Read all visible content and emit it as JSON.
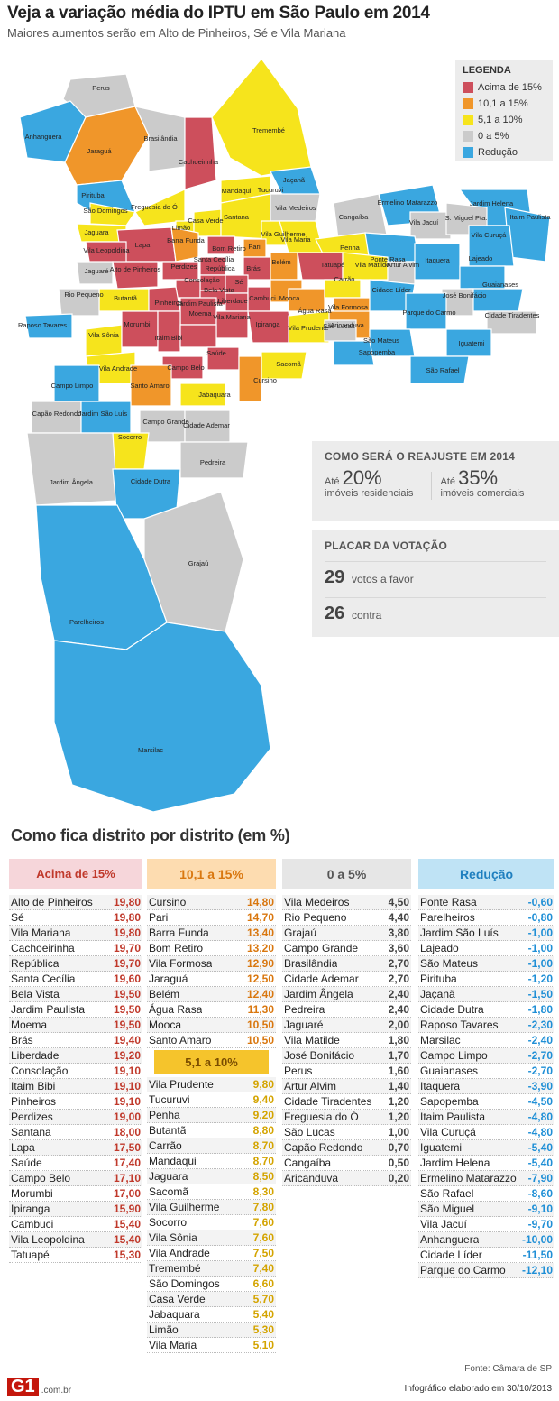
{
  "header": {
    "title": "Veja a variação média do IPTU em São Paulo em 2014",
    "subtitle": "Maiores aumentos serão em Alto de Pinheiros, Sé e Vila Mariana"
  },
  "colors": {
    "acima_15": "#cd4f5c",
    "de_10_15": "#f0962a",
    "de_5_10": "#f6e41c",
    "de_0_5": "#cbcbcb",
    "reducao": "#3aa7e0",
    "border": "#ffffff"
  },
  "legend": {
    "title": "LEGENDA",
    "items": [
      {
        "label": "Acima de 15%",
        "color": "#cd4f5c"
      },
      {
        "label": "10,1 a 15%",
        "color": "#f0962a"
      },
      {
        "label": "5,1 a 10%",
        "color": "#f6e41c"
      },
      {
        "label": "0 a 5%",
        "color": "#cbcbcb"
      },
      {
        "label": "Redução",
        "color": "#3aa7e0"
      }
    ]
  },
  "reajuste": {
    "title": "COMO SERÁ O REAJUSTE EM 2014",
    "residencial": {
      "prefix": "Até",
      "value": "20%",
      "label": "imóveis residenciais"
    },
    "comercial": {
      "prefix": "Até",
      "value": "35%",
      "label": "imóveis comerciais"
    }
  },
  "placar": {
    "title": "PLACAR DA VOTAÇÃO",
    "favor": {
      "value": "29",
      "label": "votos a favor"
    },
    "contra": {
      "value": "26",
      "label": "contra"
    }
  },
  "map_labels": [
    "Perus",
    "Anhanguera",
    "Jaraguá",
    "Brasilândia",
    "Cachoeirinha",
    "Tremembé",
    "Jaçanã",
    "Pirituba",
    "São Domingos",
    "Jaguara",
    "Freguesia do Ó",
    "Limão",
    "Casa Verde",
    "Mandaqui",
    "Tucuruvi",
    "Santana",
    "Vila Medeiros",
    "Vila Guilherme",
    "Vila Maria",
    "Ermelino Matarazzo",
    "Jardim Helena",
    "Itaim Paulista",
    "Cangaíba",
    "Vila Jacuí",
    "S. Miguel Pta.",
    "Vila Curuçá",
    "Penha",
    "Ponte Rasa",
    "Lapa",
    "Vila Leopoldina",
    "Barra Funda",
    "Bom Retiro",
    "Pari",
    "Jaguaré",
    "Alto de Pinheiros",
    "Perdizes",
    "Santa Cecília",
    "República",
    "Brás",
    "Belém",
    "Tatuapé",
    "Vila Matilde",
    "Artur Alvim",
    "Itaquera",
    "Lajeado",
    "Guaianases",
    "Butantã",
    "Consolação",
    "Sé",
    "Bela Vista",
    "Liberdade",
    "Cambuci",
    "Mooca",
    "Água Rasa",
    "Carrão",
    "Vila Formosa",
    "Aricanduva",
    "Cidade Líder",
    "José Bonifácio",
    "Parque do Carmo",
    "Cidade Tiradentes",
    "Rio Pequeno",
    "Raposo Tavares",
    "Pinheiros",
    "Jardim Paulista",
    "Vila Mariana",
    "Ipiranga",
    "Vila Prudente",
    "São Lucas",
    "São Mateus",
    "Sapopemba",
    "Iguatemi",
    "São Rafael",
    "Vila Sônia",
    "Morumbi",
    "Itaim Bibi",
    "Moema",
    "Saúde",
    "Vila Andrade",
    "Campo Belo",
    "Santo Amaro",
    "Sacomã",
    "Cursino",
    "Jabaquara",
    "Campo Limpo",
    "Capão Redondo",
    "Jardim São Luís",
    "Campo Grande",
    "Cidade Ademar",
    "Socorro",
    "Pedreira",
    "Jardim Ângela",
    "Cidade Dutra",
    "Grajaú",
    "Parelheiros",
    "Marsilac"
  ],
  "table": {
    "title": "Como fica distrito por distrito (em %)",
    "mid_header": "5,1 a 10%",
    "columns": [
      {
        "header": "Acima de 15%",
        "header_bg": "#f6d6da",
        "header_color": "#c0392b",
        "value_color": "#c0392b",
        "rows": [
          {
            "name": "Alto de Pinheiros",
            "value": "19,80"
          },
          {
            "name": "Sé",
            "value": "19,80"
          },
          {
            "name": "Vila Mariana",
            "value": "19,80"
          },
          {
            "name": "Cachoeirinha",
            "value": "19,70"
          },
          {
            "name": "República",
            "value": "19,70"
          },
          {
            "name": "Santa Cecília",
            "value": "19,60"
          },
          {
            "name": "Bela Vista",
            "value": "19,50"
          },
          {
            "name": "Jardim Paulista",
            "value": "19,50"
          },
          {
            "name": "Moema",
            "value": "19,50"
          },
          {
            "name": "Brás",
            "value": "19,40"
          },
          {
            "name": "Liberdade",
            "value": "19,20"
          },
          {
            "name": "Consolação",
            "value": "19,10"
          },
          {
            "name": "Itaim Bibi",
            "value": "19,10"
          },
          {
            "name": "Pinheiros",
            "value": "19,10"
          },
          {
            "name": "Perdizes",
            "value": "19,00"
          },
          {
            "name": "Santana",
            "value": "18,00"
          },
          {
            "name": "Lapa",
            "value": "17,50"
          },
          {
            "name": "Saúde",
            "value": "17,40"
          },
          {
            "name": "Campo Belo",
            "value": "17,10"
          },
          {
            "name": "Morumbi",
            "value": "17,00"
          },
          {
            "name": "Ipiranga",
            "value": "15,90"
          },
          {
            "name": "Cambuci",
            "value": "15,40"
          },
          {
            "name": "Vila Leopoldina",
            "value": "15,40"
          },
          {
            "name": "Tatuapé",
            "value": "15,30"
          }
        ]
      },
      {
        "header": "10,1 a 15%",
        "header_bg": "#fddcb0",
        "header_color": "#d9770f",
        "value_color": "#d9770f",
        "rows": [
          {
            "name": "Cursino",
            "value": "14,80"
          },
          {
            "name": "Pari",
            "value": "14,70"
          },
          {
            "name": "Barra Funda",
            "value": "13,40"
          },
          {
            "name": "Bom Retiro",
            "value": "13,20"
          },
          {
            "name": "Vila Formosa",
            "value": "12,90"
          },
          {
            "name": "Jaraguá",
            "value": "12,50"
          },
          {
            "name": "Belém",
            "value": "12,40"
          },
          {
            "name": "Água Rasa",
            "value": "11,30"
          },
          {
            "name": "Mooca",
            "value": "10,50"
          },
          {
            "name": "Santo Amaro",
            "value": "10,50"
          }
        ],
        "rows2": [
          {
            "name": "Vila Prudente",
            "value": "9,80"
          },
          {
            "name": "Tucuruvi",
            "value": "9,40"
          },
          {
            "name": "Penha",
            "value": "9,20"
          },
          {
            "name": "Butantã",
            "value": "8,80"
          },
          {
            "name": "Carrão",
            "value": "8,70"
          },
          {
            "name": "Mandaqui",
            "value": "8,70"
          },
          {
            "name": "Jaguara",
            "value": "8,50"
          },
          {
            "name": "Sacomã",
            "value": "8,30"
          },
          {
            "name": "Vila Guilherme",
            "value": "7,80"
          },
          {
            "name": "Socorro",
            "value": "7,60"
          },
          {
            "name": "Vila Sônia",
            "value": "7,60"
          },
          {
            "name": "Vila Andrade",
            "value": "7,50"
          },
          {
            "name": "Tremembé",
            "value": "7,40"
          },
          {
            "name": "São Domingos",
            "value": "6,60"
          },
          {
            "name": "Casa Verde",
            "value": "5,70"
          },
          {
            "name": "Jabaquara",
            "value": "5,40"
          },
          {
            "name": "Limão",
            "value": "5,30"
          },
          {
            "name": "Vila Maria",
            "value": "5,10"
          }
        ],
        "value_color2": "#d4a400"
      },
      {
        "header": "0 a 5%",
        "header_bg": "#e6e6e6",
        "header_color": "#555555",
        "value_color": "#444444",
        "rows": [
          {
            "name": "Vila Medeiros",
            "value": "4,50"
          },
          {
            "name": "Rio Pequeno",
            "value": "4,40"
          },
          {
            "name": "Grajaú",
            "value": "3,80"
          },
          {
            "name": "Campo Grande",
            "value": "3,60"
          },
          {
            "name": "Brasilândia",
            "value": "2,70"
          },
          {
            "name": "Cidade Ademar",
            "value": "2,70"
          },
          {
            "name": "Jardim Ângela",
            "value": "2,40"
          },
          {
            "name": "Pedreira",
            "value": "2,40"
          },
          {
            "name": "Jaguaré",
            "value": "2,00"
          },
          {
            "name": "Vila Matilde",
            "value": "1,80"
          },
          {
            "name": "José Bonifácio",
            "value": "1,70"
          },
          {
            "name": "Perus",
            "value": "1,60"
          },
          {
            "name": "Artur Alvim",
            "value": "1,40"
          },
          {
            "name": "Cidade Tiradentes",
            "value": "1,20"
          },
          {
            "name": "Freguesia do Ó",
            "value": "1,20"
          },
          {
            "name": "São Lucas",
            "value": "1,00"
          },
          {
            "name": "Capão Redondo",
            "value": "0,70"
          },
          {
            "name": "Cangaíba",
            "value": "0,50"
          },
          {
            "name": "Aricanduva",
            "value": "0,20"
          }
        ]
      },
      {
        "header": "Redução",
        "header_bg": "#bfe3f5",
        "header_color": "#1f7fbf",
        "value_color": "#1f8fd6",
        "rows": [
          {
            "name": "Ponte Rasa",
            "value": "-0,60"
          },
          {
            "name": "Parelheiros",
            "value": "-0,80"
          },
          {
            "name": "Jardim São Luís",
            "value": "-1,00"
          },
          {
            "name": "Lajeado",
            "value": "-1,00"
          },
          {
            "name": "São Mateus",
            "value": "-1,00"
          },
          {
            "name": "Pirituba",
            "value": "-1,20"
          },
          {
            "name": "Jaçanã",
            "value": "-1,50"
          },
          {
            "name": "Cidade Dutra",
            "value": "-1,80"
          },
          {
            "name": "Raposo Tavares",
            "value": "-2,30"
          },
          {
            "name": "Marsilac",
            "value": "-2,40"
          },
          {
            "name": "Campo Limpo",
            "value": "-2,70"
          },
          {
            "name": "Guaianases",
            "value": "-2,70"
          },
          {
            "name": "Itaquera",
            "value": "-3,90"
          },
          {
            "name": "Sapopemba",
            "value": "-4,50"
          },
          {
            "name": "Itaim Paulista",
            "value": "-4,80"
          },
          {
            "name": "Vila Curuçá",
            "value": "-4,80"
          },
          {
            "name": "Iguatemi",
            "value": "-5,40"
          },
          {
            "name": "Jardim Helena",
            "value": "-5,40"
          },
          {
            "name": "Ermelino Matarazzo",
            "value": "-7,90"
          },
          {
            "name": "São Rafael",
            "value": "-8,60"
          },
          {
            "name": "São Miguel",
            "value": "-9,10"
          },
          {
            "name": "Vila Jacuí",
            "value": "-9,70"
          },
          {
            "name": "Anhanguera",
            "value": "-10,00"
          },
          {
            "name": "Cidade Líder",
            "value": "-11,50"
          },
          {
            "name": "Parque do Carmo",
            "value": "-12,10"
          }
        ]
      }
    ]
  },
  "footer": {
    "source": "Fonte: Câmara de SP",
    "logo": "G1",
    "logo_domain": ".com.br",
    "credit": "Infográfico elaborado em 30/10/2013"
  }
}
